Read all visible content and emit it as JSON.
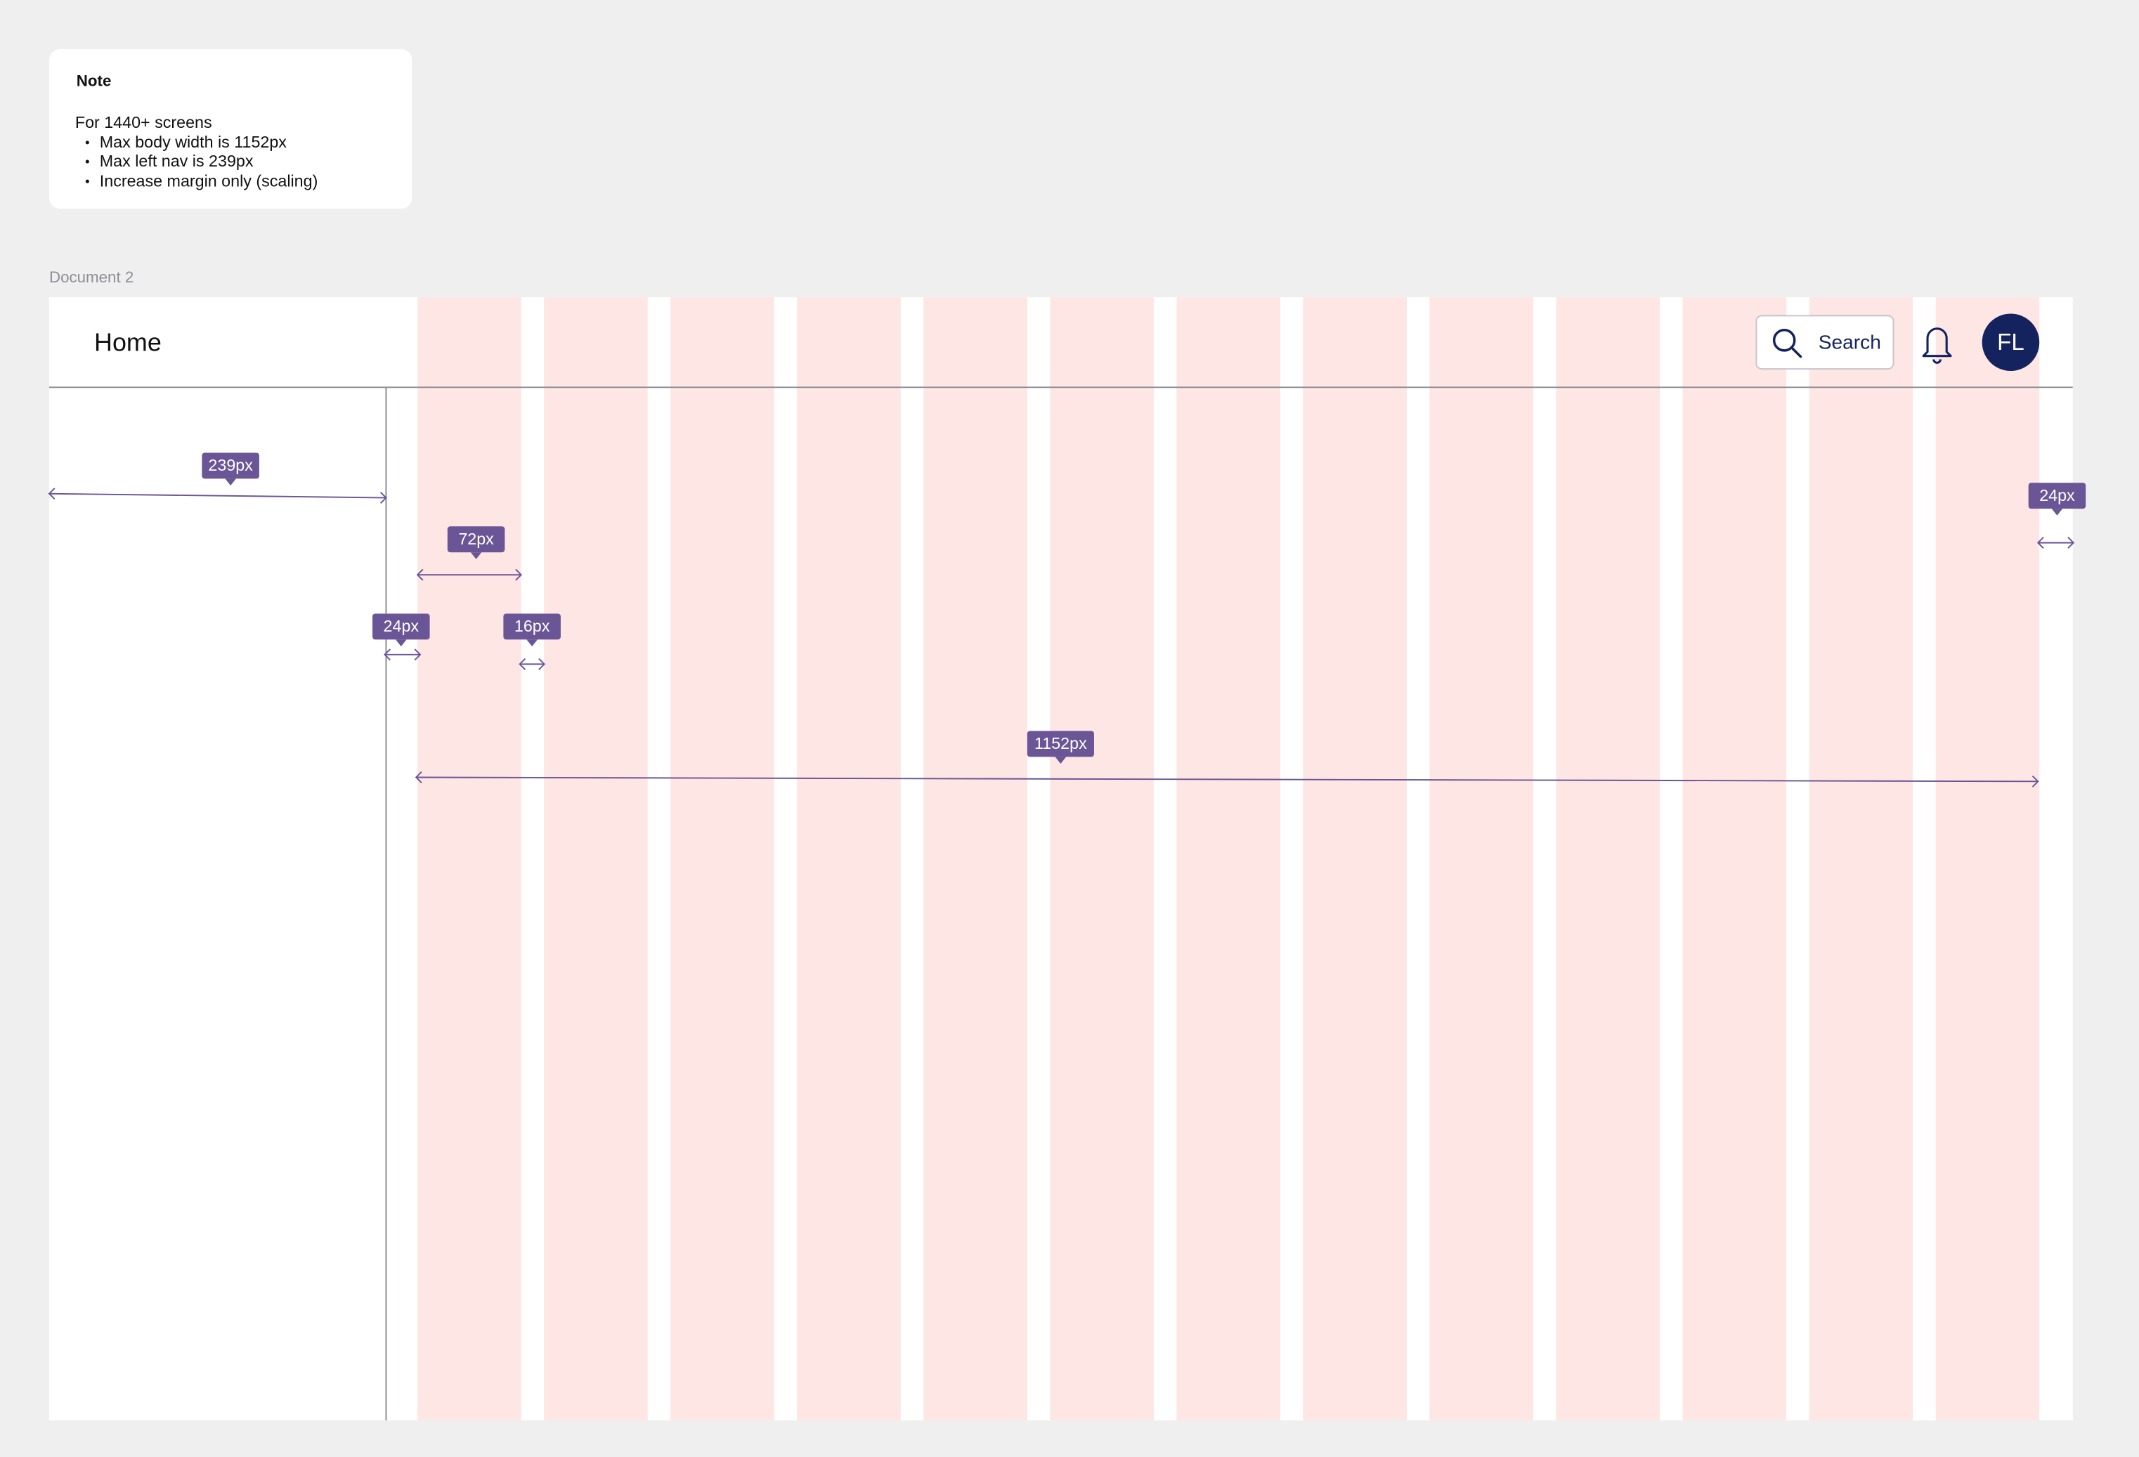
{
  "note": {
    "title": "Note",
    "intro": "For 1440+ screens",
    "items": [
      "Max body width is 1152px",
      "Max left nav is 239px",
      "Increase margin only (scaling)"
    ]
  },
  "document_label": "Document 2",
  "header": {
    "title": "Home",
    "search": "Search",
    "avatar": "FL"
  },
  "annotations": [
    "239px",
    "72px",
    "24px",
    "16px",
    "1152px",
    "24px"
  ]
}
